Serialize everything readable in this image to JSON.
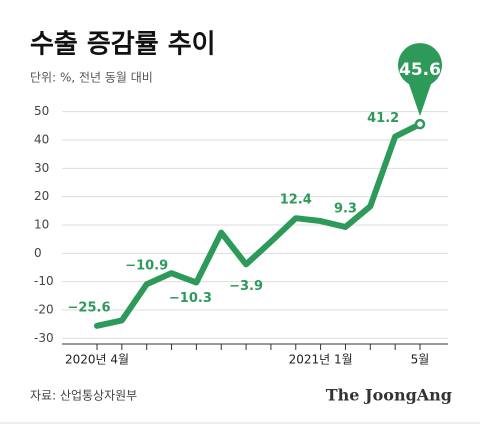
{
  "chart_data": {
    "type": "line",
    "title": "수출 증감률 추이",
    "subtitle": "단위: %, 전년 동월 대비",
    "source": "자료: 산업통상자원부",
    "brand": "The JoongAng",
    "categories": [
      "2020년 4월",
      null,
      null,
      null,
      null,
      null,
      null,
      null,
      null,
      "2021년 1월",
      null,
      null,
      null,
      "5월"
    ],
    "series": [
      {
        "name": "수출 증감률",
        "color": "#2e9a5a",
        "values": [
          -25.6,
          -23.7,
          -10.9,
          -7.0,
          -10.3,
          7.3,
          -3.9,
          4.1,
          12.4,
          11.4,
          9.3,
          16.6,
          41.2,
          45.6
        ],
        "value_labels": [
          "−25.6",
          null,
          "−10.9",
          null,
          "−10.3",
          null,
          "−3.9",
          null,
          "12.4",
          null,
          "9.3",
          null,
          "41.2",
          "45.6"
        ]
      }
    ],
    "ylim": [
      -32,
      52
    ],
    "yticks": [
      -30,
      -20,
      -10,
      0,
      10,
      20,
      30,
      40,
      50
    ],
    "grid": true
  }
}
